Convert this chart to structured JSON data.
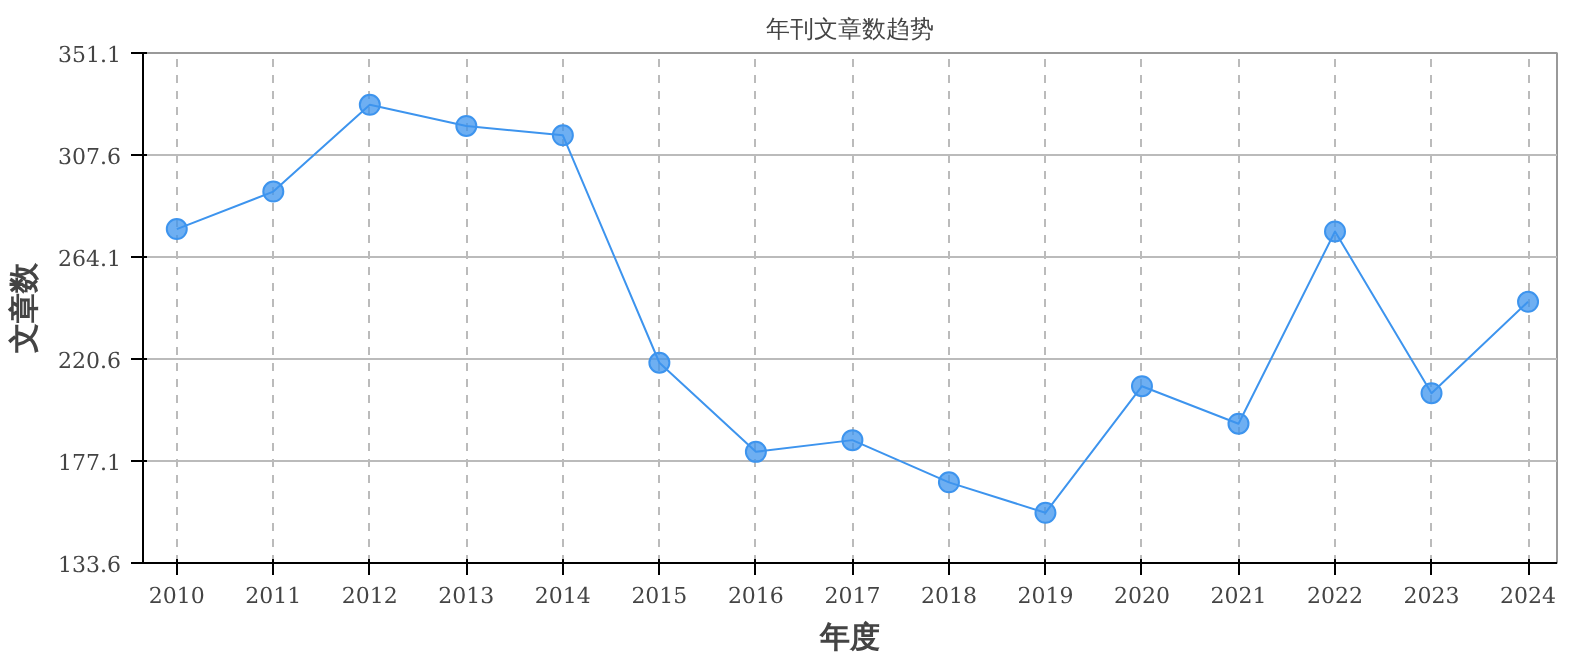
{
  "chart_data": {
    "type": "line",
    "title": "年刊文章数趋势",
    "xlabel": "年度",
    "ylabel": "文章数",
    "categories": [
      "2010",
      "2011",
      "2012",
      "2013",
      "2014",
      "2015",
      "2016",
      "2017",
      "2018",
      "2019",
      "2020",
      "2021",
      "2022",
      "2023",
      "2024"
    ],
    "series": [
      {
        "color": "#3d94ee",
        "values": [
          276,
          292,
          329,
          320,
          316,
          219,
          181,
          186,
          168,
          155,
          209,
          193,
          275,
          206,
          245
        ]
      }
    ],
    "ylim": [
      133.6,
      351.1
    ],
    "yticks": [
      133.6,
      177.1,
      220.6,
      264.1,
      307.6,
      351.1
    ],
    "grid": true,
    "marker": "circle",
    "line_style": "solid"
  }
}
